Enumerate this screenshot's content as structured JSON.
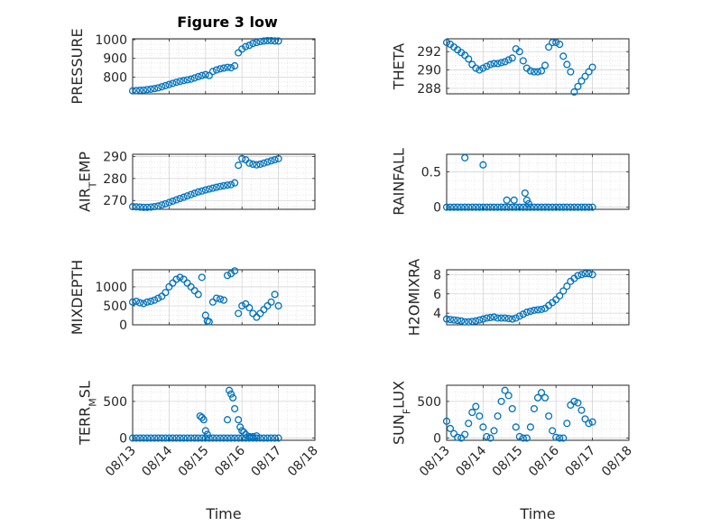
{
  "title": "Figure 3 low",
  "colors": {
    "marker": "#0072BD",
    "axis": "#262626",
    "grid": "#d4d4d4",
    "minor_grid": "#dedede"
  },
  "x_tick_labels": [
    "08/13",
    "08/14",
    "08/15",
    "08/16",
    "08/17",
    "08/18"
  ],
  "x_label": "Time",
  "chart_data": [
    {
      "type": "scatter",
      "ylabel": "PRESSURE",
      "xlim": [
        0,
        5
      ],
      "ylim": [
        710,
        1005
      ],
      "yticks": [
        800,
        900,
        1000
      ],
      "yticklabels": [
        "800",
        "900",
        "1000"
      ],
      "x": [
        0.0,
        0.1,
        0.2,
        0.3,
        0.4,
        0.5,
        0.6,
        0.7,
        0.8,
        0.9,
        1.0,
        1.1,
        1.2,
        1.3,
        1.4,
        1.5,
        1.6,
        1.7,
        1.8,
        1.9,
        2.0,
        2.1,
        2.2,
        2.3,
        2.4,
        2.5,
        2.6,
        2.7,
        2.8,
        2.9,
        3.0,
        3.1,
        3.2,
        3.3,
        3.4,
        3.5,
        3.6,
        3.7,
        3.8,
        3.9,
        4.0
      ],
      "y": [
        726,
        727,
        729,
        730,
        733,
        735,
        738,
        742,
        748,
        754,
        760,
        766,
        772,
        777,
        781,
        785,
        789,
        795,
        802,
        808,
        813,
        808,
        830,
        838,
        844,
        848,
        852,
        850,
        860,
        930,
        950,
        963,
        970,
        980,
        985,
        990,
        993,
        995,
        995,
        993,
        993
      ]
    },
    {
      "type": "scatter",
      "ylabel": "THETA",
      "xlim": [
        0,
        5
      ],
      "ylim": [
        287.4,
        293.4
      ],
      "yticks": [
        288,
        290,
        292
      ],
      "yticklabels": [
        "288",
        "290",
        "292"
      ],
      "x": [
        0.0,
        0.1,
        0.2,
        0.3,
        0.4,
        0.5,
        0.6,
        0.7,
        0.8,
        0.9,
        1.0,
        1.1,
        1.2,
        1.3,
        1.4,
        1.5,
        1.6,
        1.7,
        1.8,
        1.9,
        2.0,
        2.1,
        2.2,
        2.3,
        2.4,
        2.5,
        2.6,
        2.7,
        2.8,
        2.9,
        3.0,
        3.1,
        3.2,
        3.3,
        3.4,
        3.5,
        3.6,
        3.7,
        3.8,
        3.9,
        4.0
      ],
      "y": [
        293.0,
        292.8,
        292.5,
        292.2,
        291.9,
        291.6,
        291.2,
        290.6,
        290.2,
        290.0,
        290.2,
        290.4,
        290.6,
        290.7,
        290.7,
        290.8,
        290.9,
        291.1,
        291.3,
        292.3,
        292.0,
        291.0,
        290.2,
        289.9,
        289.8,
        289.8,
        289.9,
        290.5,
        292.5,
        293.0,
        293.0,
        292.8,
        291.5,
        290.6,
        289.8,
        287.6,
        288.2,
        288.8,
        289.3,
        289.8,
        290.3
      ]
    },
    {
      "type": "scatter",
      "ylabel": "AIR_TEMP",
      "xlim": [
        0,
        5
      ],
      "ylim": [
        266,
        291
      ],
      "yticks": [
        270,
        280,
        290
      ],
      "yticklabels": [
        "270",
        "280",
        "290"
      ],
      "x": [
        0.0,
        0.1,
        0.2,
        0.3,
        0.4,
        0.5,
        0.6,
        0.7,
        0.8,
        0.9,
        1.0,
        1.1,
        1.2,
        1.3,
        1.4,
        1.5,
        1.6,
        1.7,
        1.8,
        1.9,
        2.0,
        2.1,
        2.2,
        2.3,
        2.4,
        2.5,
        2.6,
        2.7,
        2.8,
        2.9,
        3.0,
        3.1,
        3.2,
        3.3,
        3.4,
        3.5,
        3.6,
        3.7,
        3.8,
        3.9,
        4.0
      ],
      "y": [
        267.2,
        267.1,
        267.0,
        266.9,
        266.9,
        267.0,
        267.2,
        267.5,
        268.0,
        268.5,
        269.1,
        269.7,
        270.3,
        270.9,
        271.5,
        272.1,
        272.7,
        273.3,
        273.9,
        274.3,
        274.8,
        275.2,
        275.6,
        276.0,
        276.4,
        276.7,
        277.0,
        277.2,
        278.0,
        286.0,
        289.0,
        288.5,
        287.0,
        286.5,
        286.2,
        286.5,
        287.0,
        287.5,
        288.0,
        288.5,
        289.0
      ]
    },
    {
      "type": "scatter",
      "ylabel": "RAINFALL",
      "xlim": [
        0,
        5
      ],
      "ylim": [
        -0.03,
        0.75
      ],
      "yticks": [
        0,
        0.5
      ],
      "yticklabels": [
        "0",
        "0.5"
      ],
      "x": [
        0.0,
        0.1,
        0.2,
        0.3,
        0.4,
        0.5,
        0.6,
        0.7,
        0.8,
        0.9,
        1.0,
        1.1,
        1.2,
        1.3,
        1.4,
        1.5,
        1.6,
        1.7,
        1.8,
        1.9,
        2.0,
        2.1,
        2.2,
        2.3,
        2.4,
        2.5,
        2.6,
        2.7,
        2.8,
        2.9,
        3.0,
        3.1,
        3.2,
        3.3,
        3.4,
        3.5,
        3.6,
        3.7,
        3.8,
        3.9,
        4.0,
        0.5,
        1.0,
        1.65,
        1.85,
        2.15,
        2.2,
        2.25
      ],
      "y": [
        0,
        0,
        0,
        0,
        0,
        0,
        0,
        0,
        0,
        0,
        0,
        0,
        0,
        0,
        0,
        0,
        0,
        0,
        0,
        0,
        0,
        0,
        0,
        0,
        0,
        0,
        0,
        0,
        0,
        0,
        0,
        0,
        0,
        0,
        0,
        0,
        0,
        0,
        0,
        0,
        0,
        0.7,
        0.6,
        0.1,
        0.1,
        0.2,
        0.1,
        0.05
      ]
    },
    {
      "type": "scatter",
      "ylabel": "MIXDEPTH",
      "xlim": [
        0,
        5
      ],
      "ylim": [
        0,
        1450
      ],
      "yticks": [
        0,
        500,
        1000
      ],
      "yticklabels": [
        "0",
        "500",
        "1000"
      ],
      "x": [
        0.0,
        0.1,
        0.2,
        0.3,
        0.4,
        0.5,
        0.6,
        0.7,
        0.8,
        0.9,
        1.0,
        1.1,
        1.2,
        1.3,
        1.4,
        1.5,
        1.6,
        1.7,
        1.8,
        1.9,
        2.0,
        2.05,
        2.1,
        2.2,
        2.3,
        2.4,
        2.5,
        2.6,
        2.7,
        2.8,
        2.9,
        3.0,
        3.1,
        3.2,
        3.3,
        3.4,
        3.5,
        3.6,
        3.7,
        3.8,
        3.9,
        4.0
      ],
      "y": [
        600,
        620,
        580,
        560,
        600,
        620,
        650,
        700,
        750,
        850,
        1000,
        1100,
        1200,
        1250,
        1200,
        1100,
        1000,
        900,
        800,
        1250,
        250,
        100,
        80,
        600,
        700,
        680,
        650,
        1300,
        1350,
        1420,
        300,
        500,
        550,
        450,
        300,
        200,
        300,
        400,
        500,
        600,
        800,
        500
      ]
    },
    {
      "type": "scatter",
      "ylabel": "H2OMIXRA",
      "xlim": [
        0,
        5
      ],
      "ylim": [
        2.8,
        8.5
      ],
      "yticks": [
        4,
        6,
        8
      ],
      "yticklabels": [
        "4",
        "6",
        "8"
      ],
      "x": [
        0.0,
        0.1,
        0.2,
        0.3,
        0.4,
        0.5,
        0.6,
        0.7,
        0.8,
        0.9,
        1.0,
        1.1,
        1.2,
        1.3,
        1.4,
        1.5,
        1.6,
        1.7,
        1.8,
        1.9,
        2.0,
        2.1,
        2.2,
        2.3,
        2.4,
        2.5,
        2.6,
        2.7,
        2.8,
        2.9,
        3.0,
        3.1,
        3.2,
        3.3,
        3.4,
        3.5,
        3.6,
        3.7,
        3.8,
        3.9,
        4.0
      ],
      "y": [
        3.4,
        3.35,
        3.3,
        3.25,
        3.2,
        3.1,
        3.1,
        3.15,
        3.2,
        3.3,
        3.4,
        3.5,
        3.55,
        3.6,
        3.5,
        3.5,
        3.5,
        3.45,
        3.4,
        3.5,
        3.7,
        3.9,
        4.1,
        4.2,
        4.3,
        4.35,
        4.4,
        4.5,
        4.8,
        5.1,
        5.4,
        5.8,
        6.3,
        6.8,
        7.3,
        7.6,
        7.9,
        8.0,
        8.1,
        8.1,
        8.0
      ]
    },
    {
      "type": "scatter",
      "ylabel": "TERR_MSL",
      "xlim": [
        0,
        5
      ],
      "ylim": [
        -30,
        720
      ],
      "yticks": [
        0,
        500
      ],
      "yticklabels": [
        "0",
        "500"
      ],
      "x": [
        0.0,
        0.1,
        0.2,
        0.3,
        0.4,
        0.5,
        0.6,
        0.7,
        0.8,
        0.9,
        1.0,
        1.1,
        1.2,
        1.3,
        1.4,
        1.5,
        1.6,
        1.7,
        1.8,
        1.9,
        2.0,
        2.1,
        2.2,
        2.3,
        2.4,
        2.5,
        2.6,
        2.7,
        2.8,
        2.9,
        3.0,
        3.1,
        3.2,
        3.3,
        3.4,
        3.5,
        3.6,
        3.7,
        3.8,
        3.9,
        4.0,
        1.85,
        1.9,
        1.95,
        2.0,
        2.05,
        2.6,
        2.65,
        2.7,
        2.75,
        2.8,
        2.9,
        2.95,
        3.0,
        3.05,
        3.1,
        3.2,
        3.25,
        3.3,
        3.4
      ],
      "y": [
        0,
        0,
        0,
        0,
        0,
        0,
        0,
        0,
        0,
        0,
        0,
        0,
        0,
        0,
        0,
        0,
        0,
        0,
        0,
        0,
        0,
        0,
        0,
        0,
        0,
        0,
        0,
        0,
        0,
        0,
        0,
        0,
        0,
        0,
        0,
        0,
        0,
        0,
        0,
        0,
        0,
        300,
        280,
        250,
        100,
        50,
        250,
        650,
        600,
        550,
        400,
        250,
        150,
        100,
        80,
        50,
        20,
        10,
        20,
        30
      ]
    },
    {
      "type": "scatter",
      "ylabel": "SUN_FLUX",
      "xlim": [
        0,
        5
      ],
      "ylim": [
        -30,
        720
      ],
      "yticks": [
        0,
        500
      ],
      "yticklabels": [
        "0",
        "500"
      ],
      "x": [
        0.0,
        0.1,
        0.2,
        0.3,
        0.4,
        0.5,
        0.6,
        0.7,
        0.8,
        0.9,
        1.0,
        1.1,
        1.2,
        1.3,
        1.4,
        1.5,
        1.6,
        1.7,
        1.8,
        1.9,
        2.0,
        2.1,
        2.2,
        2.3,
        2.4,
        2.5,
        2.6,
        2.7,
        2.8,
        2.9,
        3.0,
        3.1,
        3.2,
        3.3,
        3.4,
        3.5,
        3.6,
        3.7,
        3.8,
        3.9,
        4.0
      ],
      "y": [
        230,
        130,
        60,
        10,
        0,
        50,
        200,
        350,
        430,
        300,
        150,
        20,
        0,
        100,
        300,
        500,
        650,
        580,
        400,
        150,
        20,
        0,
        0,
        150,
        400,
        550,
        620,
        550,
        300,
        100,
        10,
        0,
        0,
        200,
        450,
        500,
        480,
        380,
        260,
        200,
        220
      ]
    }
  ]
}
